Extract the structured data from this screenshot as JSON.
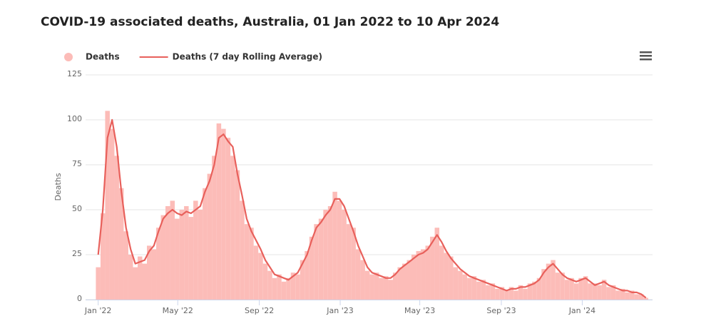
{
  "chart_data": {
    "type": "bar",
    "title": "COVID-19 associated deaths, Australia, 01 Jan 2022 to 10 Apr 2024",
    "y_label": "Deaths",
    "x": [
      0,
      7,
      14,
      21,
      28,
      35,
      42,
      49,
      56,
      63,
      70,
      77,
      84,
      91,
      98,
      105,
      112,
      119,
      126,
      133,
      140,
      147,
      154,
      161,
      168,
      175,
      182,
      189,
      196,
      203,
      210,
      217,
      224,
      231,
      238,
      245,
      252,
      259,
      266,
      273,
      280,
      287,
      294,
      301,
      308,
      315,
      322,
      329,
      336,
      343,
      350,
      357,
      364,
      371,
      378,
      385,
      392,
      399,
      406,
      413,
      420,
      427,
      434,
      441,
      448,
      455,
      462,
      469,
      476,
      483,
      490,
      497,
      504,
      511,
      518,
      525,
      532,
      539,
      546,
      553,
      560,
      567,
      574,
      581,
      588,
      595,
      602,
      609,
      616,
      623,
      630,
      637,
      644,
      651,
      658,
      665,
      672,
      679,
      686,
      693,
      700,
      707,
      714,
      721,
      728,
      735,
      742,
      749,
      756,
      763,
      770,
      777,
      784,
      791,
      798,
      805,
      812,
      819,
      826
    ],
    "series": [
      {
        "name": "Deaths",
        "type": "bar",
        "color": "#fcbcb8",
        "values": [
          18,
          48,
          105,
          95,
          80,
          62,
          38,
          25,
          18,
          24,
          20,
          30,
          28,
          40,
          47,
          52,
          55,
          45,
          50,
          52,
          46,
          55,
          50,
          62,
          70,
          80,
          98,
          95,
          90,
          80,
          72,
          55,
          42,
          40,
          30,
          26,
          20,
          16,
          12,
          14,
          10,
          12,
          15,
          14,
          22,
          27,
          35,
          42,
          45,
          50,
          52,
          60,
          55,
          50,
          42,
          40,
          28,
          22,
          16,
          14,
          15,
          12,
          13,
          11,
          15,
          18,
          20,
          22,
          25,
          27,
          28,
          30,
          35,
          40,
          30,
          26,
          24,
          18,
          16,
          14,
          12,
          13,
          10,
          11,
          8,
          9,
          6,
          7,
          5,
          7,
          5,
          8,
          6,
          9,
          10,
          12,
          17,
          20,
          22,
          15,
          15,
          11,
          12,
          9,
          12,
          13,
          9,
          9,
          8,
          11,
          7,
          8,
          5,
          6,
          4,
          5,
          3,
          3,
          1
        ]
      },
      {
        "name": "Deaths (7 day Rolling Average)",
        "type": "line",
        "color": "#e8605b",
        "values": [
          25,
          50,
          90,
          100,
          85,
          60,
          40,
          28,
          20,
          21,
          22,
          27,
          30,
          38,
          45,
          48,
          50,
          48,
          47,
          49,
          48,
          50,
          52,
          60,
          66,
          75,
          90,
          92,
          88,
          85,
          70,
          58,
          45,
          38,
          33,
          28,
          22,
          18,
          14,
          13,
          12,
          11,
          13,
          15,
          20,
          25,
          33,
          40,
          43,
          47,
          50,
          56,
          56,
          52,
          45,
          38,
          30,
          24,
          18,
          15,
          14,
          13,
          12,
          12,
          14,
          17,
          19,
          21,
          23,
          25,
          26,
          28,
          32,
          36,
          32,
          27,
          23,
          20,
          17,
          15,
          13,
          12,
          11,
          10,
          9,
          8,
          7,
          6,
          5,
          6,
          6,
          7,
          7,
          8,
          9,
          11,
          15,
          18,
          20,
          17,
          14,
          12,
          11,
          10,
          11,
          12,
          10,
          8,
          9,
          10,
          8,
          7,
          6,
          5,
          5,
          4,
          4,
          3,
          1
        ]
      }
    ],
    "xlim": [
      -19,
      836
    ],
    "xticks": [
      {
        "value": 0,
        "label": "Jan '22"
      },
      {
        "value": 120,
        "label": "May '22"
      },
      {
        "value": 243,
        "label": "Sep '22"
      },
      {
        "value": 365,
        "label": "Jan '23"
      },
      {
        "value": 485,
        "label": "May '23"
      },
      {
        "value": 608,
        "label": "Sep '23"
      },
      {
        "value": 730,
        "label": "Jan '24"
      }
    ],
    "ylim": [
      0,
      125
    ],
    "yticks": [
      0,
      25,
      50,
      75,
      100,
      125
    ],
    "grid": true
  }
}
